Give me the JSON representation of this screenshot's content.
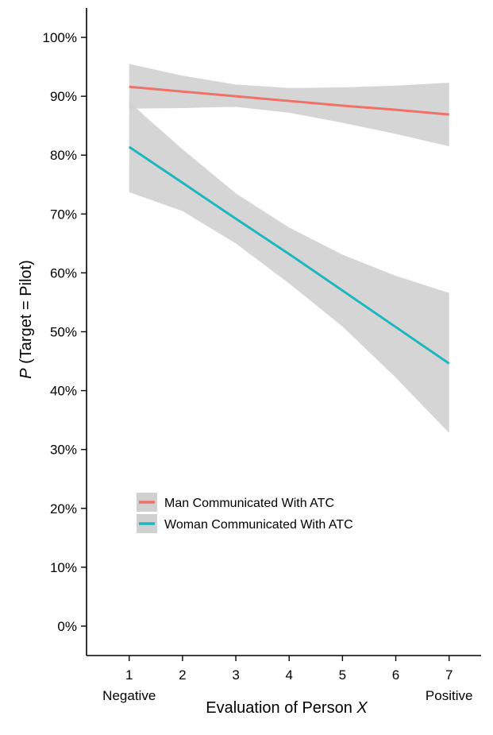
{
  "chart_data": {
    "type": "line",
    "xlabel": {
      "prefix": "Evaluation of Person ",
      "italic": "X"
    },
    "ylabel": {
      "italic": "P",
      "suffix": " (Target = Pilot)"
    },
    "x_ticks": [
      1,
      2,
      3,
      4,
      5,
      6,
      7
    ],
    "x_tick_labels": [
      "1",
      "2",
      "3",
      "4",
      "5",
      "6",
      "7"
    ],
    "x_endpoint_labels": [
      {
        "x": 1,
        "label": "Negative"
      },
      {
        "x": 7,
        "label": "Positive"
      }
    ],
    "xlim": [
      0.2,
      7.6
    ],
    "y_ticks": [
      0,
      10,
      20,
      30,
      40,
      50,
      60,
      70,
      80,
      90,
      100
    ],
    "y_tick_labels": [
      "0%",
      "10%",
      "20%",
      "30%",
      "40%",
      "50%",
      "60%",
      "70%",
      "80%",
      "90%",
      "100%"
    ],
    "ylim": [
      -5,
      105
    ],
    "grid": false,
    "legend_position": "lower-left",
    "colors": {
      "band": "#d0d0d0",
      "axis": "#000000"
    },
    "series": [
      {
        "name": "Man Communicated With ATC",
        "color": "#f07167",
        "x": [
          1,
          2,
          3,
          4,
          5,
          6,
          7
        ],
        "y": [
          91.6,
          90.8,
          90.0,
          89.2,
          88.4,
          87.7,
          86.9
        ],
        "ci_upper": [
          95.5,
          93.5,
          92.0,
          91.4,
          91.5,
          91.8,
          92.3
        ],
        "ci_lower": [
          87.9,
          88.0,
          88.2,
          87.2,
          85.5,
          83.6,
          81.5
        ]
      },
      {
        "name": "Woman Communicated With ATC",
        "color": "#1db7be",
        "x": [
          1,
          2,
          3,
          4,
          5,
          6,
          7
        ],
        "y": [
          81.4,
          75.3,
          69.2,
          63.2,
          57.0,
          50.8,
          44.6
        ],
        "ci_upper": [
          89.0,
          81.0,
          73.5,
          67.7,
          63.1,
          59.5,
          56.6
        ],
        "ci_lower": [
          73.7,
          70.5,
          65.0,
          58.2,
          50.9,
          42.2,
          32.8
        ]
      }
    ]
  }
}
